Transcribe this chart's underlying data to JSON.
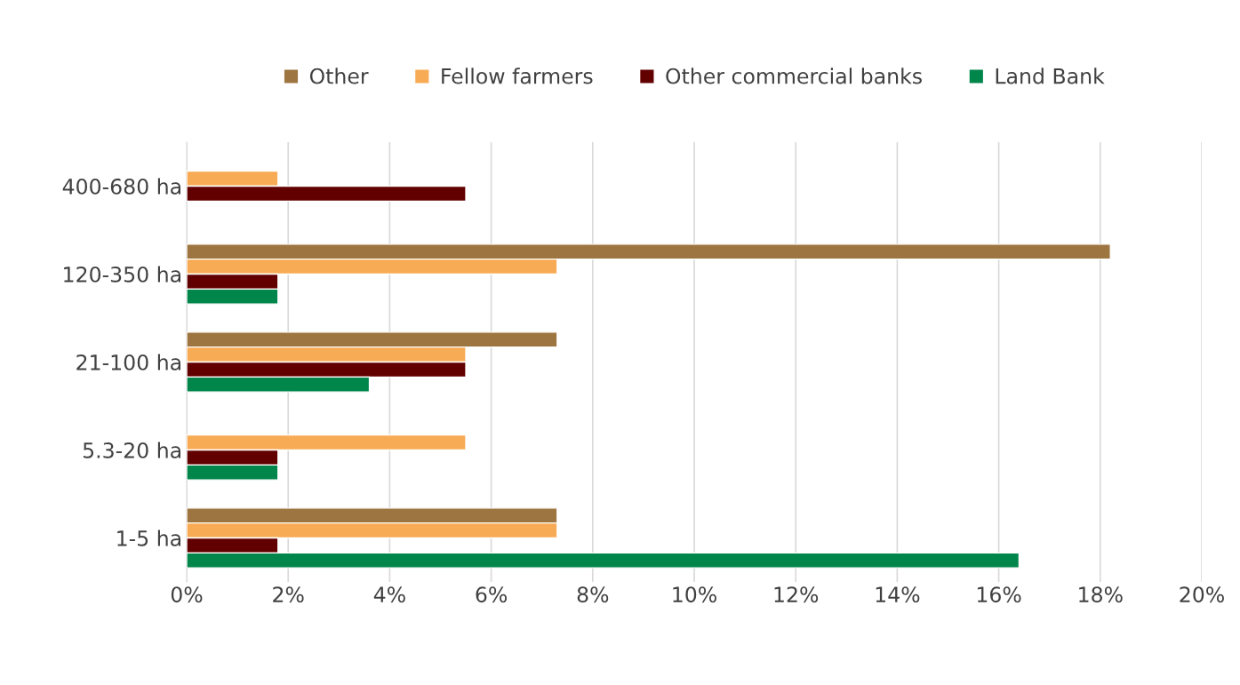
{
  "chart_data": {
    "type": "bar",
    "orientation": "horizontal",
    "categories": [
      "400-680 ha",
      "120-350 ha",
      "21-100 ha",
      "5.3-20 ha",
      "1-5 ha"
    ],
    "series": [
      {
        "name": "Other",
        "color": "#9c7540",
        "values": [
          null,
          18.2,
          7.3,
          null,
          7.3
        ]
      },
      {
        "name": "Fellow farmers",
        "color": "#f8ab55",
        "values": [
          1.8,
          7.3,
          5.5,
          5.5,
          7.3
        ]
      },
      {
        "name": "Other commercial banks",
        "color": "#620000",
        "values": [
          5.5,
          1.8,
          5.5,
          1.8,
          1.8
        ]
      },
      {
        "name": "Land Bank",
        "color": "#00854a",
        "values": [
          null,
          1.8,
          3.6,
          1.8,
          16.4
        ]
      }
    ],
    "xlim": [
      0,
      20
    ],
    "xticks": [
      {
        "value": 0,
        "label": "0%"
      },
      {
        "value": 2,
        "label": "2%"
      },
      {
        "value": 4,
        "label": "4%"
      },
      {
        "value": 6,
        "label": "6%"
      },
      {
        "value": 8,
        "label": "8%"
      },
      {
        "value": 10,
        "label": "10%"
      },
      {
        "value": 12,
        "label": "12%"
      },
      {
        "value": 14,
        "label": "14%"
      },
      {
        "value": 16,
        "label": "16%"
      },
      {
        "value": 18,
        "label": "18%"
      },
      {
        "value": 20,
        "label": "20%"
      }
    ],
    "grid": "x",
    "legend": "top"
  }
}
